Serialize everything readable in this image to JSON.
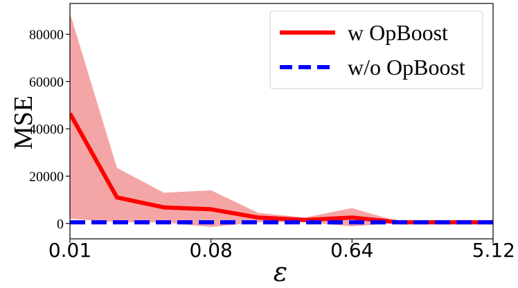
{
  "chart_data": {
    "type": "line",
    "title": "",
    "xlabel": "ε",
    "ylabel": "MSE",
    "x": [
      0.01,
      0.02,
      0.04,
      0.08,
      0.16,
      0.32,
      0.64,
      1.28,
      2.56,
      5.12
    ],
    "xtick_labels": [
      "0.01",
      "0.08",
      "0.64",
      "5.12"
    ],
    "xtick_values": [
      0.01,
      0.08,
      0.64,
      5.12
    ],
    "ytick_labels": [
      "0",
      "20000",
      "40000",
      "60000",
      "80000"
    ],
    "ytick_values": [
      0,
      20000,
      40000,
      60000,
      80000
    ],
    "ylim": [
      -6500,
      93000
    ],
    "xscale": "log2",
    "grid": false,
    "legend_position": "top-right",
    "series": [
      {
        "name": "w OpBoost",
        "color": "#ff0000",
        "style": "solid",
        "values": [
          46500,
          11000,
          6800,
          6000,
          2500,
          1500,
          2500,
          500,
          500,
          500
        ],
        "band_upper": [
          89000,
          23500,
          13000,
          14000,
          4500,
          2500,
          6500,
          800,
          600,
          600
        ],
        "band_lower": [
          2000,
          500,
          500,
          -1500,
          500,
          500,
          -1200,
          200,
          300,
          300
        ],
        "band_color": "#f4a6a6"
      },
      {
        "name": "w/o OpBoost",
        "color": "#0000ff",
        "style": "dashed",
        "values": [
          500,
          500,
          500,
          500,
          500,
          500,
          500,
          500,
          500,
          500
        ]
      }
    ]
  }
}
